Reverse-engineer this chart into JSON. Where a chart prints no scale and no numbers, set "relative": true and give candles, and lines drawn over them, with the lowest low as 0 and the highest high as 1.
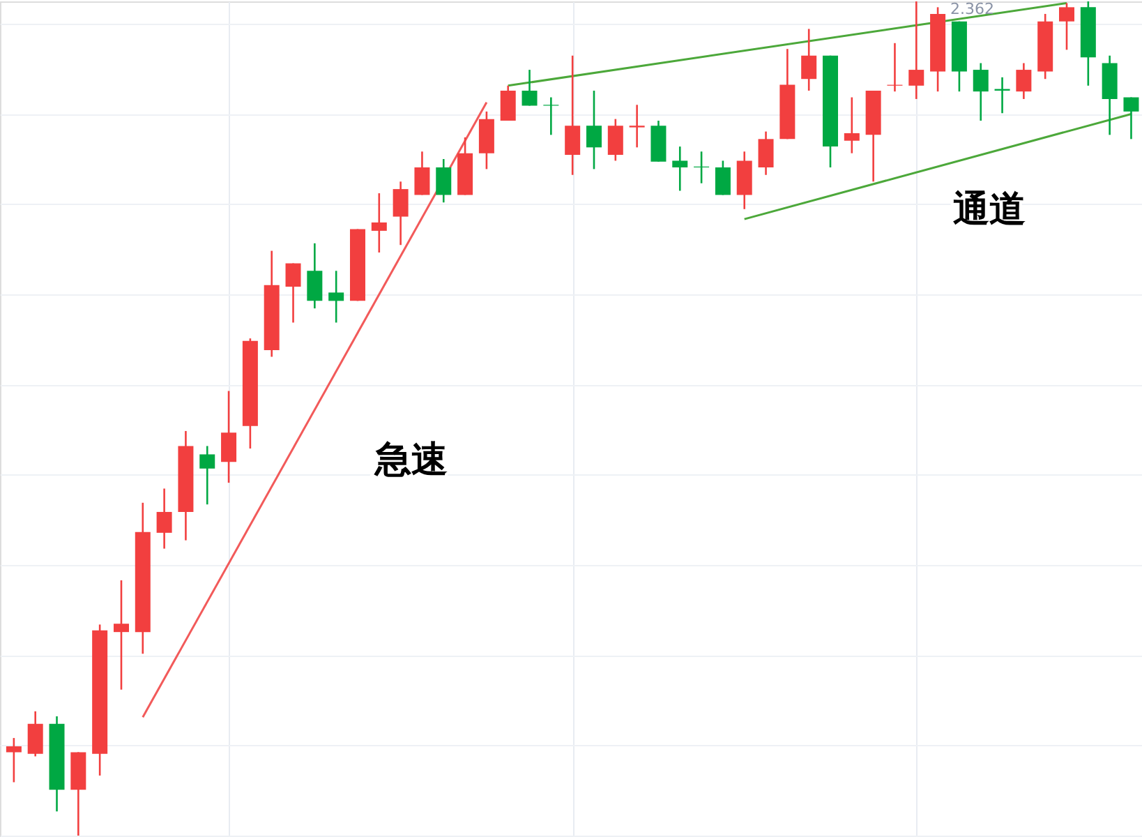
{
  "chart_data": {
    "type": "candlestick",
    "relative": true,
    "grid": true,
    "categories": [
      null,
      null,
      null,
      null,
      null,
      null,
      null,
      null,
      null,
      null,
      null,
      null,
      null,
      null,
      null,
      null,
      null,
      null,
      null,
      null,
      null,
      null,
      null,
      null,
      null,
      null,
      null,
      null,
      null,
      null,
      null,
      null,
      null,
      null,
      null,
      null,
      null,
      null,
      null,
      null,
      null,
      null,
      null,
      null,
      null,
      null,
      null,
      null,
      null,
      null,
      null,
      null,
      null
    ],
    "ohlc": [
      [
        0.1,
        0.117,
        0.064,
        0.107
      ],
      [
        0.098,
        0.149,
        0.095,
        0.134
      ],
      [
        0.134,
        0.143,
        0.029,
        0.055
      ],
      [
        0.055,
        0.1,
        0,
        0.1
      ],
      [
        0.098,
        0.253,
        0.072,
        0.246
      ],
      [
        0.244,
        0.306,
        0.175,
        0.254
      ],
      [
        0.244,
        0.399,
        0.218,
        0.364
      ],
      [
        0.363,
        0.416,
        0.344,
        0.388
      ],
      [
        0.388,
        0.485,
        0.354,
        0.467
      ],
      [
        0.457,
        0.467,
        0.397,
        0.44
      ],
      [
        0.448,
        0.533,
        0.423,
        0.483
      ],
      [
        0.491,
        0.596,
        0.464,
        0.593
      ],
      [
        0.582,
        0.701,
        0.574,
        0.66
      ],
      [
        0.658,
        0.686,
        0.615,
        0.686
      ],
      [
        0.677,
        0.71,
        0.632,
        0.641
      ],
      [
        0.651,
        0.677,
        0.615,
        0.641
      ],
      [
        0.641,
        0.727,
        0.641,
        0.727
      ],
      [
        0.725,
        0.77,
        0.699,
        0.735
      ],
      [
        0.742,
        0.784,
        0.708,
        0.775
      ],
      [
        0.768,
        0.82,
        0.768,
        0.801
      ],
      [
        0.801,
        0.811,
        0.759,
        0.768
      ],
      [
        0.768,
        0.837,
        0.768,
        0.818
      ],
      [
        0.818,
        0.868,
        0.799,
        0.859
      ],
      [
        0.857,
        0.899,
        0.857,
        0.893
      ],
      [
        0.893,
        0.918,
        0.875,
        0.875
      ],
      [
        0.876,
        0.885,
        0.84,
        0.875
      ],
      [
        0.816,
        0.935,
        0.792,
        0.851
      ],
      [
        0.851,
        0.893,
        0.799,
        0.825
      ],
      [
        0.816,
        0.859,
        0.809,
        0.851
      ],
      [
        0.849,
        0.876,
        0.825,
        0.851
      ],
      [
        0.851,
        0.857,
        0.808,
        0.808
      ],
      [
        0.809,
        0.826,
        0.773,
        0.801
      ],
      [
        0.802,
        0.82,
        0.782,
        0.801
      ],
      [
        0.801,
        0.809,
        0.768,
        0.768
      ],
      [
        0.768,
        0.82,
        0.751,
        0.809
      ],
      [
        0.801,
        0.844,
        0.792,
        0.835
      ],
      [
        0.835,
        0.943,
        0.835,
        0.9
      ],
      [
        0.907,
        0.967,
        0.893,
        0.935
      ],
      [
        0.935,
        0.935,
        0.801,
        0.826
      ],
      [
        0.833,
        0.885,
        0.818,
        0.842
      ],
      [
        0.84,
        0.893,
        0.784,
        0.893
      ],
      [
        0.899,
        0.95,
        0.892,
        0.9
      ],
      [
        0.899,
        1,
        0.883,
        0.918
      ],
      [
        0.916,
        0.993,
        0.892,
        0.985
      ],
      [
        0.976,
        0.976,
        0.892,
        0.916
      ],
      [
        0.918,
        0.926,
        0.857,
        0.892
      ],
      [
        0.895,
        0.909,
        0.866,
        0.893
      ],
      [
        0.892,
        0.926,
        0.883,
        0.918
      ],
      [
        0.916,
        0.985,
        0.907,
        0.976
      ],
      [
        0.976,
        0.998,
        0.942,
        0.993
      ],
      [
        0.993,
        1,
        0.899,
        0.933
      ],
      [
        0.926,
        0.935,
        0.84,
        0.883
      ],
      [
        0.885,
        0.885,
        0.835,
        0.868
      ]
    ],
    "colors": [
      "#f23f3f",
      "#f23f3f",
      "#00a843",
      "#f23f3f",
      "#f23f3f",
      "#f23f3f",
      "#f23f3f",
      "#f23f3f",
      "#f23f3f",
      "#00a843",
      "#f23f3f",
      "#f23f3f",
      "#f23f3f",
      "#f23f3f",
      "#00a843",
      "#00a843",
      "#f23f3f",
      "#f23f3f",
      "#f23f3f",
      "#f23f3f",
      "#00a843",
      "#f23f3f",
      "#f23f3f",
      "#f23f3f",
      "#00a843",
      "#00a843",
      "#f23f3f",
      "#00a843",
      "#f23f3f",
      "#f23f3f",
      "#00a843",
      "#00a843",
      "#00a843",
      "#00a843",
      "#f23f3f",
      "#f23f3f",
      "#f23f3f",
      "#f23f3f",
      "#00a843",
      "#f23f3f",
      "#f23f3f",
      "#f23f3f",
      "#f23f3f",
      "#f23f3f",
      "#00a843",
      "#00a843",
      "#00a843",
      "#f23f3f",
      "#f23f3f",
      "#f23f3f",
      "#00a843",
      "#00a843",
      "#00a843"
    ],
    "series": [
      {
        "type": "line",
        "color": "#f25a5a",
        "values": [
          null,
          null,
          null,
          null,
          null,
          null,
          0.142,
          null,
          null,
          null,
          null,
          null,
          null,
          null,
          null,
          null,
          null,
          null,
          null,
          null,
          null,
          null,
          0.879,
          null,
          null,
          null,
          null,
          null,
          null,
          null,
          null,
          null,
          null,
          null,
          null,
          null,
          null,
          null,
          null,
          null,
          null,
          null,
          null,
          null,
          null,
          null,
          null,
          null,
          null,
          null,
          null,
          null,
          null
        ]
      },
      {
        "type": "line",
        "color": "#4ca83a",
        "values": [
          null,
          null,
          null,
          null,
          null,
          null,
          null,
          null,
          null,
          null,
          null,
          null,
          null,
          null,
          null,
          null,
          null,
          null,
          null,
          null,
          null,
          null,
          null,
          0.899,
          null,
          null,
          null,
          null,
          null,
          null,
          null,
          null,
          null,
          null,
          null,
          null,
          null,
          null,
          null,
          null,
          null,
          null,
          null,
          null,
          null,
          null,
          null,
          null,
          null,
          0.998,
          null,
          null,
          null
        ]
      },
      {
        "type": "line",
        "color": "#4ca83a",
        "values": [
          null,
          null,
          null,
          null,
          null,
          null,
          null,
          null,
          null,
          null,
          null,
          null,
          null,
          null,
          null,
          null,
          null,
          null,
          null,
          null,
          null,
          null,
          null,
          null,
          null,
          null,
          null,
          null,
          null,
          null,
          null,
          null,
          null,
          null,
          0.739,
          null,
          null,
          null,
          null,
          null,
          null,
          null,
          null,
          null,
          null,
          null,
          null,
          null,
          null,
          null,
          null,
          null,
          0.865
        ]
      }
    ],
    "annotations": [
      "急速",
      "通道",
      "2.362"
    ],
    "line_style": "solid"
  }
}
